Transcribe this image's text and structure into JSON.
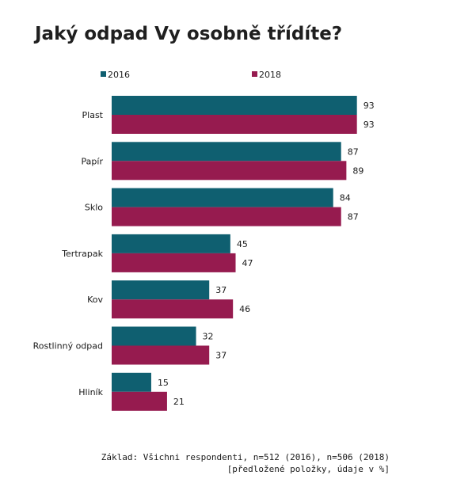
{
  "chart_data": {
    "type": "bar",
    "orientation": "horizontal",
    "title": "Jaký odpad Vy osobně třídíte?",
    "categories": [
      "Plast",
      "Papír",
      "Sklo",
      "Tertrapak",
      "Kov",
      "Rostlinný odpad",
      "Hliník"
    ],
    "series": [
      {
        "name": "2016",
        "color": "#0f5f70",
        "values": [
          93,
          87,
          84,
          45,
          37,
          32,
          15
        ]
      },
      {
        "name": "2018",
        "color": "#961b4f",
        "values": [
          93,
          89,
          87,
          47,
          46,
          37,
          21
        ]
      }
    ],
    "xlim": [
      0,
      100
    ],
    "grid": false,
    "legend": "top-left",
    "data_labels": true
  },
  "footnote": {
    "line1": "Základ: Všichni respondenti, n=512 (2016), n=506 (2018)",
    "line2": "[předložené položky, údaje v %]"
  }
}
